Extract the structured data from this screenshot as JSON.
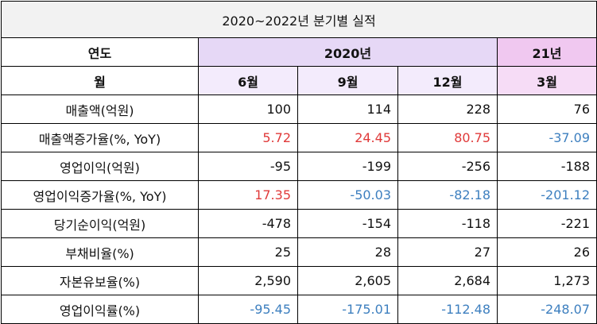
{
  "title": "2020~2022년 분기별 실적",
  "header": {
    "year_label": "연도",
    "month_label": "월",
    "year_2020": "2020년",
    "year_21": "21년",
    "months": [
      "6월",
      "9월",
      "12월",
      "3월"
    ]
  },
  "colors": {
    "positive": "#e03a3a",
    "negative": "#3d7fbf",
    "header_2020": "#e6d8f6",
    "header_21": "#f0c8f0"
  },
  "rows": [
    {
      "label": "매출액(억원)",
      "values": [
        "100",
        "114",
        "228",
        "76"
      ],
      "tones": [
        "plain",
        "plain",
        "plain",
        "plain"
      ]
    },
    {
      "label": "매출액증가율(%, YoY)",
      "values": [
        "5.72",
        "24.45",
        "80.75",
        "-37.09"
      ],
      "tones": [
        "pos",
        "pos",
        "pos",
        "neg"
      ]
    },
    {
      "label": "영업이익(억원)",
      "values": [
        "-95",
        "-199",
        "-256",
        "-188"
      ],
      "tones": [
        "plain",
        "plain",
        "plain",
        "plain"
      ]
    },
    {
      "label": "영업이익증가율(%, YoY)",
      "values": [
        "17.35",
        "-50.03",
        "-82.18",
        "-201.12"
      ],
      "tones": [
        "pos",
        "neg",
        "neg",
        "neg"
      ]
    },
    {
      "label": "당기순이익(억원)",
      "values": [
        "-478",
        "-154",
        "-118",
        "-221"
      ],
      "tones": [
        "plain",
        "plain",
        "plain",
        "plain"
      ]
    },
    {
      "label": "부채비율(%)",
      "values": [
        "25",
        "28",
        "27",
        "26"
      ],
      "tones": [
        "plain",
        "plain",
        "plain",
        "plain"
      ]
    },
    {
      "label": "자본유보율(%)",
      "values": [
        "2,590",
        "2,605",
        "2,684",
        "1,273"
      ],
      "tones": [
        "plain",
        "plain",
        "plain",
        "plain"
      ]
    },
    {
      "label": "영업이익률(%)",
      "values": [
        "-95.45",
        "-175.01",
        "-112.48",
        "-248.07"
      ],
      "tones": [
        "neg",
        "neg",
        "neg",
        "neg"
      ]
    }
  ]
}
